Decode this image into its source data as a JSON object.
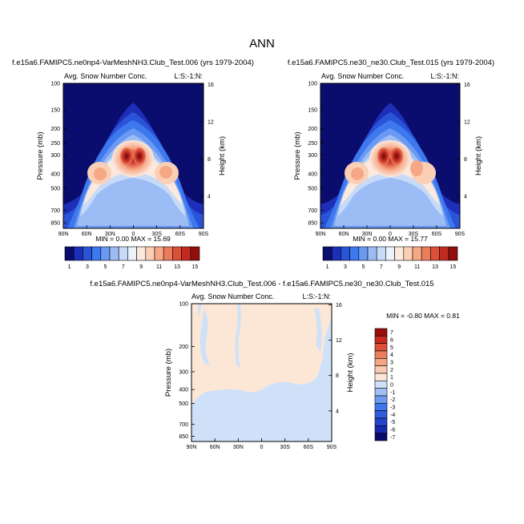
{
  "figure": {
    "title": "ANN"
  },
  "colors": {
    "model_scale": [
      "#0b0d6e",
      "#1d2fb8",
      "#2a54d8",
      "#3e78ee",
      "#6a99f3",
      "#9cbcf5",
      "#c7dbf8",
      "#ebf2fb",
      "#fce9dd",
      "#fbcfb5",
      "#f6a886",
      "#ec7d5c",
      "#dc503a",
      "#c22a20",
      "#8f0e0e"
    ],
    "diff_scale": [
      "#0a0a6b",
      "#1829ad",
      "#2543c9",
      "#2f5edd",
      "#3d78ec",
      "#6e9bf2",
      "#9fbff5",
      "#cfe1f8",
      "#fce7d6",
      "#f9ccb0",
      "#f4a582",
      "#ec7d5a",
      "#dd5038",
      "#c92a1f",
      "#9a0d0d"
    ]
  },
  "chart_data": [
    {
      "type": "heatmap",
      "panel": "top-left",
      "title": "f.e15a6.FAMIPC5.ne0np4-VarMeshNH3.Club_Test.006 (yrs 1979-2004)",
      "left_label": "Avg. Snow Number Conc.",
      "right_label": "L:S:-1:N:",
      "ylabel": "Pressure (mb)",
      "ylabel_right": "Height (km)",
      "x_ticks": [
        "90N",
        "60N",
        "30N",
        "0",
        "30S",
        "60S",
        "90S"
      ],
      "xlim": [
        90,
        -90
      ],
      "y_ticks": [
        "100",
        "150",
        "200",
        "250",
        "300",
        "400",
        "500",
        "700",
        "850"
      ],
      "y_tick_values": [
        100,
        150,
        200,
        250,
        300,
        400,
        500,
        700,
        850
      ],
      "ylim": [
        100,
        925
      ],
      "y_scale": "log",
      "right_ticks": [
        "16",
        "12",
        "8",
        "4"
      ],
      "right_tick_values": [
        16,
        12,
        8,
        4
      ],
      "stats_text": "MIN =  0.00  MAX =  15.69",
      "min": 0.0,
      "max": 15.69,
      "colorbar": {
        "orientation": "horizontal",
        "tick_labels": [
          "1",
          "3",
          "5",
          "7",
          "9",
          "11",
          "13",
          "15"
        ],
        "levels": [
          1,
          2,
          3,
          4,
          5,
          6,
          7,
          8,
          9,
          10,
          11,
          12,
          13,
          14,
          15
        ]
      }
    },
    {
      "type": "heatmap",
      "panel": "top-right",
      "title": "f.e15a6.FAMIPC5.ne30_ne30.Club_Test.015 (yrs 1979-2004)",
      "left_label": "Avg. Snow Number Conc.",
      "right_label": "L:S:-1:N:",
      "ylabel": "Pressure (mb)",
      "ylabel_right": "Height (km)",
      "x_ticks": [
        "90N",
        "60N",
        "30N",
        "0",
        "30S",
        "60S",
        "90S"
      ],
      "xlim": [
        90,
        -90
      ],
      "y_ticks": [
        "100",
        "150",
        "200",
        "250",
        "300",
        "400",
        "500",
        "700",
        "850"
      ],
      "y_tick_values": [
        100,
        150,
        200,
        250,
        300,
        400,
        500,
        700,
        850
      ],
      "ylim": [
        100,
        925
      ],
      "y_scale": "log",
      "right_ticks": [
        "16",
        "12",
        "8",
        "4"
      ],
      "right_tick_values": [
        16,
        12,
        8,
        4
      ],
      "stats_text": "MIN =  0.00  MAX =  15.77",
      "min": 0.0,
      "max": 15.77,
      "colorbar": {
        "orientation": "horizontal",
        "tick_labels": [
          "1",
          "3",
          "5",
          "7",
          "9",
          "11",
          "13",
          "15"
        ],
        "levels": [
          1,
          2,
          3,
          4,
          5,
          6,
          7,
          8,
          9,
          10,
          11,
          12,
          13,
          14,
          15
        ]
      }
    },
    {
      "type": "heatmap",
      "panel": "bottom",
      "title": "f.e15a6.FAMIPC5.ne0np4-VarMeshNH3.Club_Test.006 - f.e15a6.FAMIPC5.ne30_ne30.Club_Test.015",
      "left_label": "Avg. Snow Number Conc.",
      "right_label": "L:S:-1:N:",
      "ylabel": "Pressure (mb)",
      "ylabel_right": "Height (km)",
      "x_ticks": [
        "90N",
        "60N",
        "30N",
        "0",
        "30S",
        "60S",
        "90S"
      ],
      "xlim": [
        90,
        -90
      ],
      "y_ticks": [
        "100",
        "200",
        "300",
        "400",
        "500",
        "700",
        "850"
      ],
      "y_tick_values": [
        100,
        200,
        300,
        400,
        500,
        700,
        850
      ],
      "ylim": [
        100,
        925
      ],
      "y_scale": "log",
      "right_ticks": [
        "16",
        "12",
        "8",
        "4"
      ],
      "right_tick_values": [
        16,
        12,
        8,
        4
      ],
      "stats_text": "MIN = -0.80  MAX =  0.81",
      "min": -0.8,
      "max": 0.81,
      "colorbar": {
        "orientation": "vertical",
        "tick_labels": [
          "7",
          "6",
          "5",
          "4",
          "3",
          "2",
          "1",
          "0",
          "-1",
          "-2",
          "-3",
          "-4",
          "-5",
          "-6",
          "-7"
        ]
      }
    }
  ]
}
